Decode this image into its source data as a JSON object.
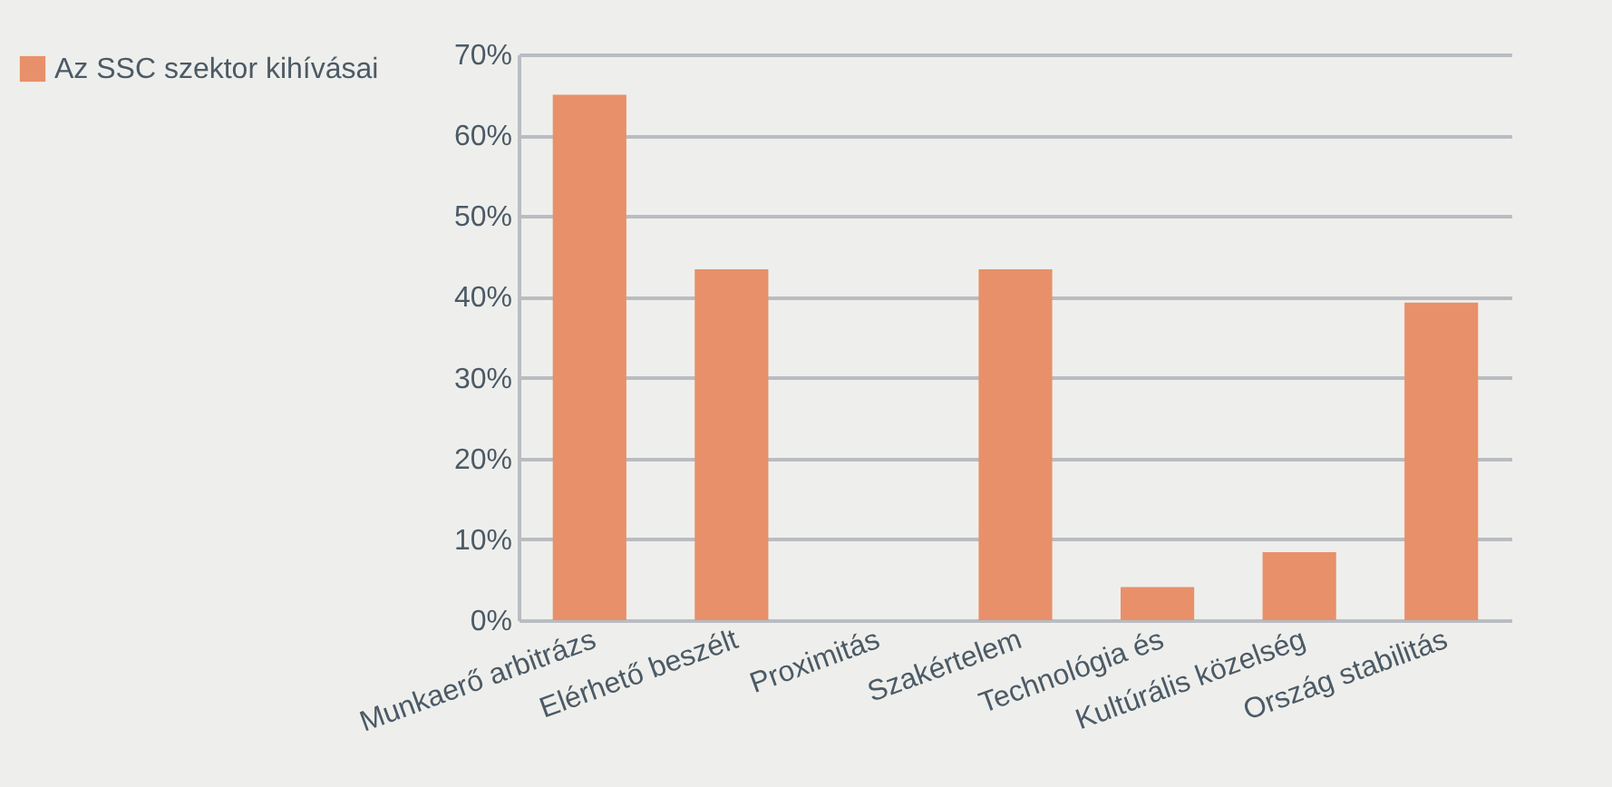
{
  "chart_data": {
    "type": "bar",
    "categories": [
      "Munkaerő arbitrázs",
      "Elérhető beszélt",
      "Proximitás",
      "Szakértelem",
      "Technológia és",
      "Kultúrális közelség",
      "Ország stabilitás"
    ],
    "series": [
      {
        "name": "Az SSC szektor kihívásai",
        "color": "#e8906a",
        "values": [
          65,
          43.4,
          0,
          43.4,
          4.1,
          8.4,
          39.3
        ]
      }
    ],
    "ylim": [
      0,
      70
    ],
    "yticks": [
      {
        "value": 0,
        "label": "0%"
      },
      {
        "value": 10,
        "label": "10%"
      },
      {
        "value": 20,
        "label": "20%"
      },
      {
        "value": 30,
        "label": "30%"
      },
      {
        "value": 40,
        "label": "40%"
      },
      {
        "value": 50,
        "label": "50%"
      },
      {
        "value": 60,
        "label": "60%"
      },
      {
        "value": 70,
        "label": "70%"
      }
    ],
    "grid": "y",
    "legend": "left"
  }
}
